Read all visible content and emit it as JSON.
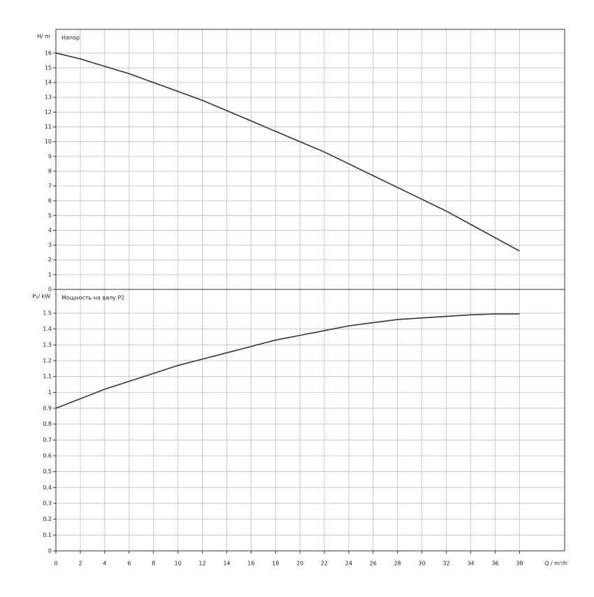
{
  "chart_data": [
    {
      "type": "line",
      "y_label": "H/ m",
      "curve_label": "Напор",
      "x": [
        0,
        2,
        4,
        6,
        8,
        10,
        12,
        14,
        16,
        18,
        20,
        22,
        24,
        26,
        28,
        30,
        32,
        34,
        36,
        38
      ],
      "series": [
        {
          "name": "Напор",
          "color": "#333333",
          "values": [
            16,
            15.6,
            15.1,
            14.6,
            14.0,
            13.4,
            12.8,
            12.1,
            11.4,
            10.7,
            10.0,
            9.3,
            8.5,
            7.7,
            6.9,
            6.1,
            5.3,
            4.4,
            3.5,
            2.6
          ]
        }
      ],
      "xlim": [
        0,
        41.7
      ],
      "ylim": [
        0,
        17.6
      ],
      "yticks": [
        0,
        1,
        2,
        3,
        4,
        5,
        6,
        7,
        8,
        9,
        10,
        11,
        12,
        13,
        14,
        15,
        16
      ],
      "grid": true
    },
    {
      "type": "line",
      "y_label": "P₂/ kW",
      "curve_label": "Мощность на валу P2",
      "x_label": "Q / m³/h",
      "x": [
        0,
        2,
        4,
        6,
        8,
        10,
        12,
        14,
        16,
        18,
        20,
        22,
        24,
        26,
        28,
        30,
        32,
        34,
        36,
        38
      ],
      "series": [
        {
          "name": "Мощность на валу P2",
          "color": "#333333",
          "values": [
            0.9,
            0.96,
            1.02,
            1.07,
            1.12,
            1.17,
            1.21,
            1.25,
            1.29,
            1.33,
            1.36,
            1.39,
            1.42,
            1.44,
            1.46,
            1.47,
            1.48,
            1.49,
            1.495,
            1.495
          ]
        }
      ],
      "xlim": [
        0,
        41.7
      ],
      "xticks": [
        0,
        2,
        4,
        6,
        8,
        10,
        12,
        14,
        16,
        18,
        20,
        22,
        24,
        26,
        28,
        30,
        32,
        34,
        36,
        38
      ],
      "ylim": [
        0,
        1.65
      ],
      "yticks": [
        0,
        0.1,
        0.2,
        0.3,
        0.4,
        0.5,
        0.6,
        0.7,
        0.8,
        0.9,
        1,
        1.1,
        1.2,
        1.3,
        1.4,
        1.5
      ],
      "grid": true
    }
  ]
}
